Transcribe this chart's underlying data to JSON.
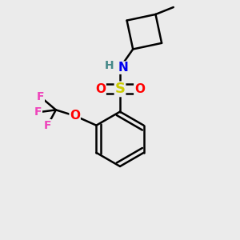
{
  "background_color": "#ebebeb",
  "bond_color": "#000000",
  "bond_width": 1.8,
  "atom_colors": {
    "N": "#0000ee",
    "O": "#ff0000",
    "S": "#cccc00",
    "F": "#ee44bb",
    "H_N": "#448888",
    "C": "#000000"
  },
  "font_size": 11,
  "fig_width": 3.0,
  "fig_height": 3.0,
  "dpi": 100,
  "xlim": [
    0,
    1
  ],
  "ylim": [
    0,
    1
  ]
}
